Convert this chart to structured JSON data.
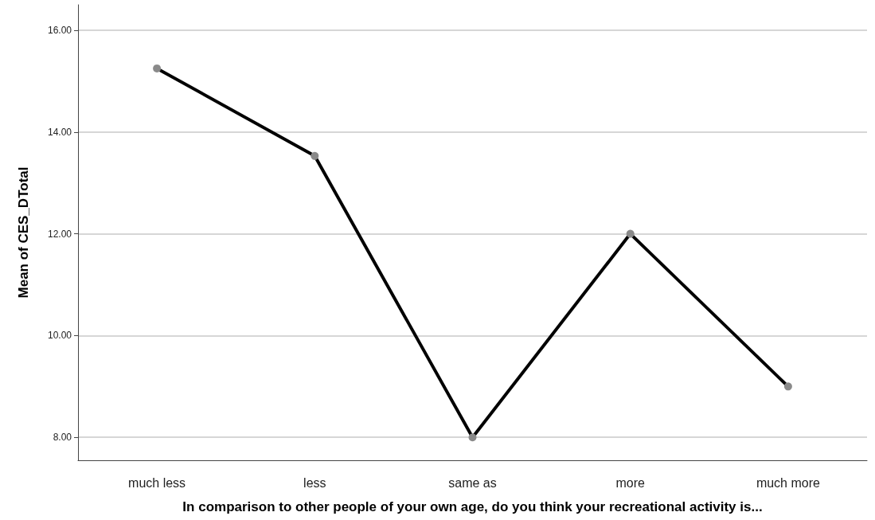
{
  "chart_data": {
    "type": "line",
    "xlabel": "In comparison to other people of your own age, do you think your recreational activity is...",
    "ylabel": "Mean of CES_DTotal",
    "categories": [
      "much less",
      "less",
      "same as",
      "more",
      "much more"
    ],
    "series": [
      {
        "color": "#000000",
        "values": [
          15.25,
          13.53,
          8.0,
          12.0,
          9.0
        ]
      }
    ],
    "ylim": [
      7.55,
      16.5
    ],
    "yticks": [
      {
        "value": 8,
        "label": "8.00"
      },
      {
        "value": 10,
        "label": "10.00"
      },
      {
        "value": 12,
        "label": "12.00"
      },
      {
        "value": 14,
        "label": "14.00"
      },
      {
        "value": 16,
        "label": "16.00"
      }
    ],
    "grid": "y",
    "marker": "circle",
    "line_style": "solid"
  }
}
